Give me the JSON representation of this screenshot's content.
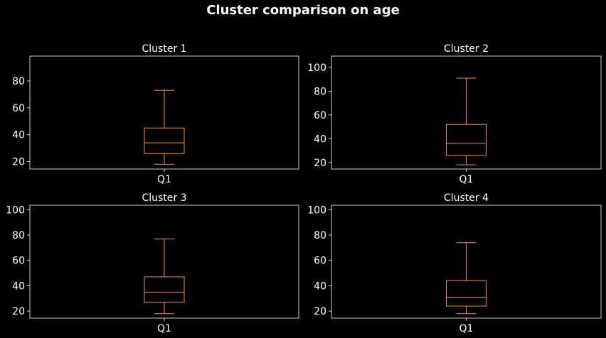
{
  "title": "Cluster comparison on age",
  "colors": {
    "background": "#000000",
    "axes": "#ffffff",
    "box": "#ff8c1a",
    "text": "#ffffff"
  },
  "chart_data": [
    {
      "type": "box",
      "title": "Cluster 1",
      "categories": [
        "Q1"
      ],
      "box": {
        "whislo": 18,
        "q1": 26,
        "med": 34,
        "q3": 45,
        "whishi": 73
      },
      "ylim": [
        14.5,
        98.5
      ],
      "yticks": [
        20,
        40,
        60,
        80
      ]
    },
    {
      "type": "box",
      "title": "Cluster 2",
      "categories": [
        "Q1"
      ],
      "box": {
        "whislo": 18,
        "q1": 26,
        "med": 36,
        "q3": 52,
        "whishi": 91
      },
      "ylim": [
        14.5,
        109.5
      ],
      "yticks": [
        20,
        40,
        60,
        80,
        100
      ]
    },
    {
      "type": "box",
      "title": "Cluster 3",
      "categories": [
        "Q1"
      ],
      "box": {
        "whislo": 18,
        "q1": 27,
        "med": 35,
        "q3": 47,
        "whishi": 77
      },
      "ylim": [
        14.5,
        103.5
      ],
      "yticks": [
        20,
        40,
        60,
        80,
        100
      ]
    },
    {
      "type": "box",
      "title": "Cluster 4",
      "categories": [
        "Q1"
      ],
      "box": {
        "whislo": 18,
        "q1": 24,
        "med": 31,
        "q3": 44,
        "whishi": 74
      },
      "ylim": [
        14.5,
        103.5
      ],
      "yticks": [
        20,
        40,
        60,
        80,
        100
      ]
    }
  ]
}
